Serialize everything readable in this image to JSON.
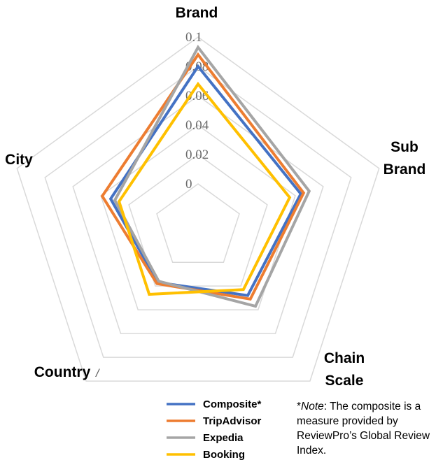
{
  "chart_data": {
    "type": "radar",
    "axes": [
      "Brand",
      "Sub Brand",
      "Chain Scale",
      "Country",
      "City"
    ],
    "axis_label_lines": [
      [
        "Brand"
      ],
      [
        "Sub",
        "Brand"
      ],
      [
        "Chain",
        "Scale"
      ],
      [
        "Country"
      ],
      [
        "City"
      ]
    ],
    "ticks": [
      0,
      0.02,
      0.04,
      0.06,
      0.08,
      0.1
    ],
    "tick_labels": [
      "0",
      "0.02",
      "0.04",
      "0.06",
      "0.08",
      "0.1"
    ],
    "range": [
      0,
      0.1
    ],
    "grid": true,
    "legend_position": "bottom",
    "series": [
      {
        "name": "Composite*",
        "color": "#4472c4",
        "values": [
          0.08,
          0.044,
          0.028,
          0.017,
          0.033
        ]
      },
      {
        "name": "TripAdvisor",
        "color": "#ed7d31",
        "values": [
          0.088,
          0.046,
          0.031,
          0.018,
          0.039
        ]
      },
      {
        "name": "Expedia",
        "color": "#a5a5a5",
        "values": [
          0.093,
          0.05,
          0.037,
          0.016,
          0.03
        ]
      },
      {
        "name": "Booking",
        "color": "#ffc000",
        "values": [
          0.068,
          0.036,
          0.023,
          0.027,
          0.027
        ]
      }
    ]
  },
  "note": {
    "prefix": "*",
    "italic": "Note",
    "text": ": The composite is a measure provided by ReviewPro’s Global Review Index."
  },
  "stray_mark": "/"
}
